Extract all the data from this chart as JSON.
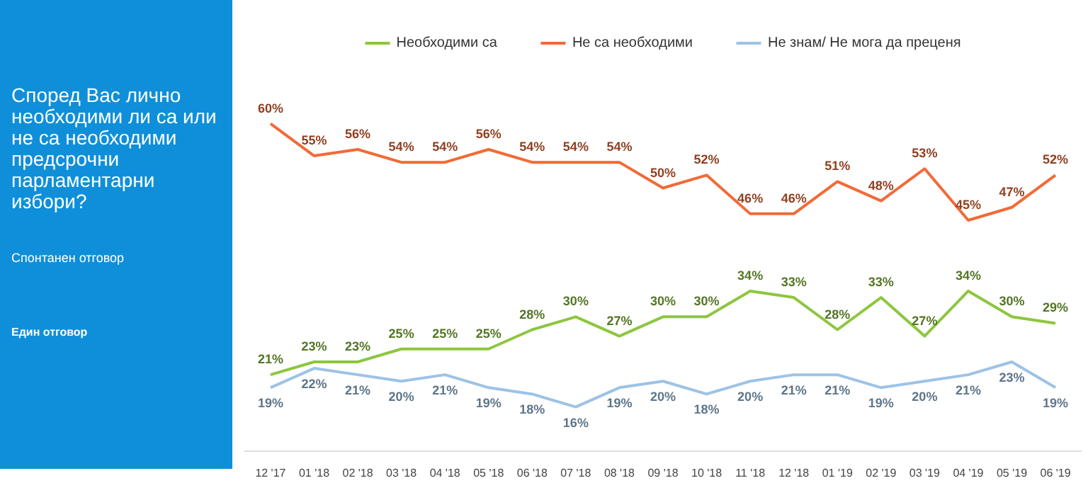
{
  "chart_data": {
    "type": "line",
    "title": "Според Вас лично необходими ли са или не са необходими предсрочни парламентарни избори?",
    "subtitle": "Спонтанен отговор",
    "annotations": [
      "Един отговор"
    ],
    "categories": [
      "12 '17",
      "01 '18",
      "02 '18",
      "03 '18",
      "04 '18",
      "05 '18",
      "06 '18",
      "07 '18",
      "08 '18",
      "09 '18",
      "10 '18",
      "11 '18",
      "12 '18",
      "01 '19",
      "02 '19",
      "03 '19",
      "04 '19",
      "05 '19",
      "06 '19"
    ],
    "series": [
      {
        "name": "Необходими са",
        "color": "#8dc63f",
        "values": [
          21,
          23,
          23,
          25,
          25,
          25,
          28,
          30,
          27,
          30,
          30,
          34,
          33,
          28,
          33,
          27,
          34,
          30,
          29
        ],
        "value_labels": [
          "21%",
          "23%",
          "23%",
          "25%",
          "25%",
          "25%",
          "28%",
          "30%",
          "27%",
          "30%",
          "30%",
          "34%",
          "33%",
          "28%",
          "33%",
          "27%",
          "34%",
          "30%",
          "29%"
        ]
      },
      {
        "name": "Не са необходими",
        "color": "#f26a36",
        "values": [
          60,
          55,
          56,
          54,
          54,
          56,
          54,
          54,
          54,
          50,
          52,
          46,
          46,
          51,
          48,
          53,
          45,
          47,
          52
        ],
        "value_labels": [
          "60%",
          "55%",
          "56%",
          "54%",
          "54%",
          "56%",
          "54%",
          "54%",
          "54%",
          "50%",
          "52%",
          "46%",
          "46%",
          "51%",
          "48%",
          "53%",
          "45%",
          "47%",
          "52%"
        ]
      },
      {
        "name": "Не знам/ Не мога да преценя",
        "color": "#9dc3e6",
        "values": [
          19,
          22,
          21,
          20,
          21,
          19,
          18,
          16,
          19,
          20,
          18,
          20,
          21,
          21,
          19,
          20,
          21,
          23,
          19
        ],
        "value_labels": [
          "19%",
          "22%",
          "21%",
          "20%",
          "21%",
          "19%",
          "18%",
          "16%",
          "19%",
          "20%",
          "18%",
          "20%",
          "21%",
          "21%",
          "19%",
          "20%",
          "21%",
          "23%",
          "19%"
        ]
      }
    ],
    "legend": "top",
    "grid": false,
    "marker": "none",
    "line_style": "solid"
  }
}
